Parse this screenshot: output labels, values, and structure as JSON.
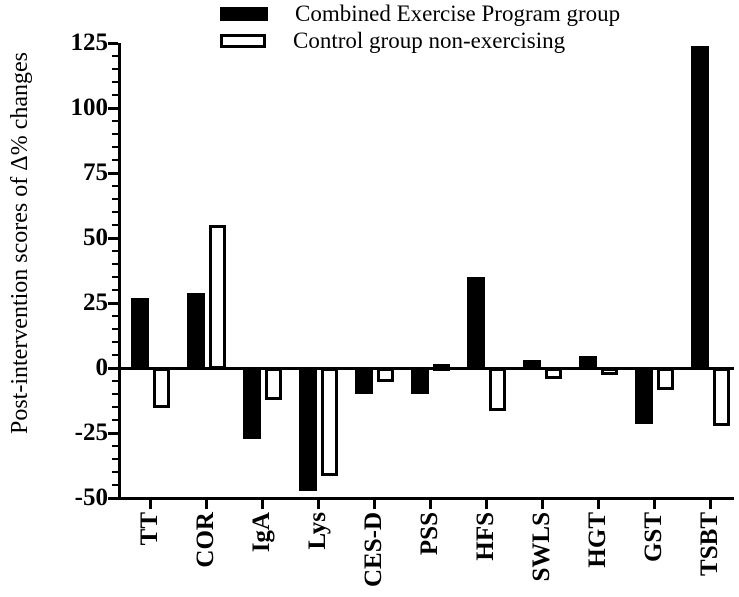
{
  "chart_data": {
    "type": "bar",
    "ylabel": "Post-intervention scores of Δ% changes",
    "xlabel": "",
    "categories": [
      "TT",
      "COR",
      "IgA",
      "Lys",
      "CES-D",
      "PSS",
      "HFS",
      "SWLS",
      "HGT",
      "GST",
      "TSBT"
    ],
    "series": [
      {
        "name": "Combined Exercise Program group",
        "fill": "#000000",
        "values": [
          27,
          29,
          -27,
          -47,
          -9.5,
          -9.5,
          35,
          3,
          4.5,
          -21,
          124
        ]
      },
      {
        "name": "Control group non-exercising",
        "fill": "#ffffff",
        "outline": "#000000",
        "values": [
          -15,
          55,
          -12,
          -41,
          -5,
          1.5,
          -16,
          -4,
          -2,
          -8,
          -22
        ]
      }
    ],
    "ylim": [
      -50,
      125
    ],
    "yticks": [
      125,
      100,
      75,
      50,
      25,
      0,
      -25,
      -50
    ],
    "ytick_major": 25,
    "ytick_minor": 5,
    "baseline": 0,
    "grid": "off",
    "legend_position": "top",
    "colors": {
      "axis": "#000000",
      "background": "#ffffff"
    }
  }
}
